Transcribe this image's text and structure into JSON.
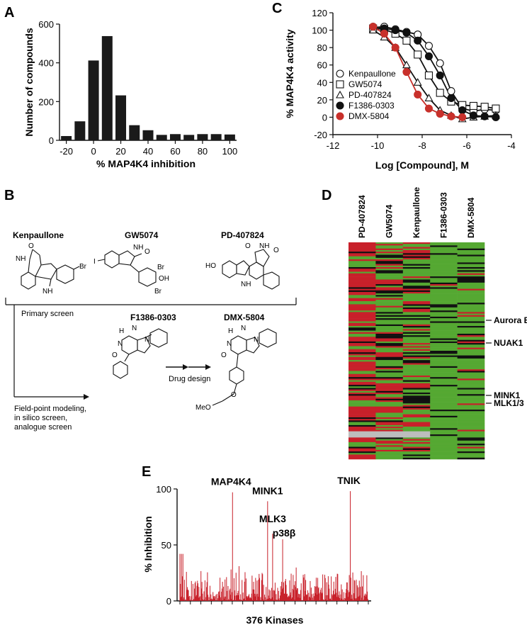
{
  "panels": {
    "a": "A",
    "b": "B",
    "c": "C",
    "d": "D",
    "e": "E"
  },
  "panel_b": {
    "compounds_top": [
      "Kenpaullone",
      "GW5074",
      "PD-407824"
    ],
    "compounds_bottom": [
      "F1386-0303",
      "DMX-5804"
    ],
    "primary_screen": "Primary screen",
    "method_lines": [
      "Field-point modeling,",
      "in silico screen,",
      "analogue screen"
    ],
    "drug_design": "Drug design",
    "atoms": {
      "O": "O",
      "NH": "NH",
      "N": "N",
      "Br": "Br",
      "H": "H",
      "I": "I",
      "OH": "OH",
      "HO": "HO",
      "MeO": "MeO"
    }
  },
  "panel_d": {
    "columns": [
      "PD-407824",
      "GW5074",
      "Kenpaullone",
      "F1386-0303",
      "DMX-5804"
    ],
    "annotations": [
      "Aurora B",
      "NUAK1",
      "MINK1",
      "MLK1/3"
    ],
    "colors": {
      "inhibited": "#c8202a",
      "neutral": "#111111",
      "active": "#55a832",
      "missing": "#bdbdbd"
    }
  },
  "chart_data": [
    {
      "type": "bar",
      "panel": "A",
      "xlabel": "% MAP4K4 inhibition",
      "ylabel": "Number of compounds",
      "xlim": [
        -25,
        105
      ],
      "ylim": [
        0,
        600
      ],
      "xticks": [
        -20,
        0,
        20,
        40,
        60,
        80,
        100
      ],
      "yticks": [
        0,
        200,
        400,
        600
      ],
      "x": [
        -20,
        -10,
        0,
        10,
        20,
        30,
        40,
        50,
        60,
        70,
        80,
        90,
        100
      ],
      "values": [
        22,
        98,
        412,
        538,
        232,
        78,
        52,
        28,
        32,
        28,
        32,
        32,
        30
      ],
      "color": "#1a1a1a"
    },
    {
      "type": "scatter",
      "panel": "C",
      "xlabel": "Log [Compound], M",
      "ylabel": "% MAP4K4 activity",
      "xlim": [
        -12,
        -4
      ],
      "ylim": [
        -20,
        120
      ],
      "xticks": [
        -12,
        -10,
        -8,
        -6,
        -4
      ],
      "yticks": [
        -20,
        0,
        20,
        40,
        60,
        80,
        100,
        120
      ],
      "series": [
        {
          "name": "Kenpaullone",
          "marker": "circle-open",
          "color": "#111111",
          "x": [
            -10.2,
            -9.7,
            -9.2,
            -8.7,
            -8.2,
            -7.7,
            -7.2,
            -6.7,
            -6.2,
            -5.7,
            -5.2,
            -4.7
          ],
          "y": [
            103,
            104,
            101,
            98,
            95,
            82,
            62,
            30,
            10,
            7,
            9,
            8
          ]
        },
        {
          "name": "GW5074",
          "marker": "square-open",
          "color": "#111111",
          "x": [
            -10.2,
            -9.7,
            -9.2,
            -8.7,
            -8.2,
            -7.7,
            -7.2,
            -6.7,
            -6.2,
            -5.7,
            -5.2,
            -4.7
          ],
          "y": [
            102,
            101,
            96,
            88,
            72,
            48,
            28,
            18,
            14,
            13,
            12,
            10
          ]
        },
        {
          "name": "PD-407824",
          "marker": "triangle-open",
          "color": "#111111",
          "x": [
            -10.2,
            -9.7,
            -9.2,
            -8.7,
            -8.2,
            -7.7,
            -7.2,
            -6.7,
            -6.2,
            -5.7,
            -5.2,
            -4.7
          ],
          "y": [
            100,
            92,
            80,
            60,
            40,
            22,
            8,
            2,
            -2,
            0,
            1,
            2
          ]
        },
        {
          "name": "F1386-0303",
          "marker": "circle-filled",
          "color": "#111111",
          "x": [
            -10.2,
            -9.7,
            -9.2,
            -8.7,
            -8.2,
            -7.7,
            -7.2,
            -6.7,
            -6.2,
            -5.7,
            -5.2,
            -4.7
          ],
          "y": [
            104,
            102,
            100,
            97,
            88,
            70,
            48,
            22,
            8,
            2,
            1,
            0
          ]
        },
        {
          "name": "DMX-5804",
          "marker": "circle-filled",
          "color": "#c8302b",
          "x": [
            -10.2,
            -9.7,
            -9.2,
            -8.7,
            -8.2,
            -7.7,
            -7.2,
            -6.7,
            -6.2
          ],
          "y": [
            104,
            96,
            80,
            52,
            26,
            10,
            4,
            1,
            0
          ]
        }
      ]
    },
    {
      "type": "bar",
      "panel": "E",
      "xlabel": "376 Kinases",
      "ylabel": "% Inhibition",
      "ylim": [
        0,
        100
      ],
      "yticks": [
        0,
        50,
        100
      ],
      "color": "#c8202a",
      "annotations": [
        {
          "label": "MAP4K4",
          "index": 105,
          "value": 97
        },
        {
          "label": "MINK1",
          "index": 175,
          "value": 89
        },
        {
          "label": "MLK3",
          "index": 185,
          "value": 60
        },
        {
          "label": "p38β",
          "index": 205,
          "value": 55
        },
        {
          "label": "TNIK",
          "index": 340,
          "value": 98
        }
      ],
      "num_kinases": 376
    }
  ]
}
